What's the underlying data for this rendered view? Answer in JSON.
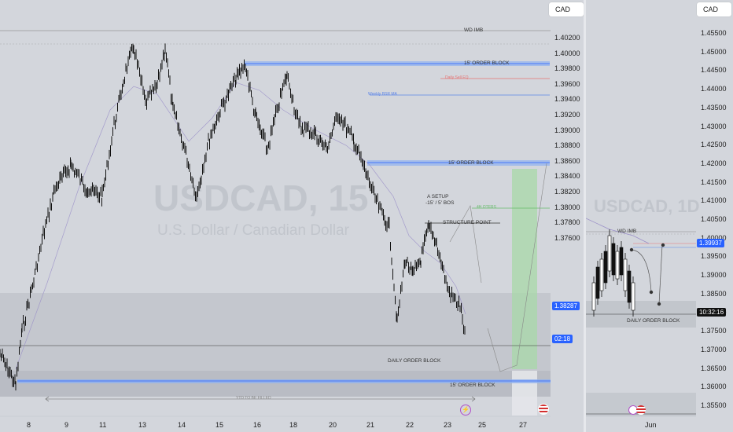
{
  "symbol": {
    "ticker": "USDCAD, 15",
    "ticker_right": "USDCAD, 1D",
    "name": "U.S. Dollar / Canadian Dollar"
  },
  "currency": "CAD",
  "left_chart": {
    "y_ticks": [
      "1.40200",
      "1.40000",
      "1.39800",
      "1.39600",
      "1.39400",
      "1.39200",
      "1.39000",
      "1.38800",
      "1.38600",
      "1.38400",
      "1.38200",
      "1.38000",
      "1.37800",
      "1.37600"
    ],
    "x_ticks": [
      "8",
      "9",
      "11",
      "13",
      "14",
      "15",
      "16",
      "18",
      "20",
      "21",
      "22",
      "23",
      "25",
      "27"
    ],
    "price_tag": "1.38287",
    "countdown": "02:18",
    "annotations": {
      "wd_imb": "WD IMB",
      "order_block_top": "15' ORDER BLOCK",
      "order_block_mid": "15' ORDER BLOCK",
      "order_block_bottom": "15' ORDER BLOCK",
      "daily_order_block": "DAILY ORDER BLOCK",
      "structure_point": "STRUCTURE POINT",
      "setup_line1": "A SETUP",
      "setup_line2": "-15' / 5' BOS",
      "sell_label": "Daily Sell EQ",
      "weekly_label": "Weekly BSR MA",
      "target_label": "4H OTERS",
      "range_label": "YTD TO BE FILLED"
    }
  },
  "right_chart": {
    "y_ticks": [
      "1.45500",
      "1.45000",
      "1.44500",
      "1.44000",
      "1.43500",
      "1.43000",
      "1.42500",
      "1.42000",
      "1.41500",
      "1.41000",
      "1.40500",
      "1.40000",
      "1.39500",
      "1.39000",
      "1.38500",
      "1.38000",
      "1.37500",
      "1.37000",
      "1.36500",
      "1.36000",
      "1.35500"
    ],
    "x_ticks": [
      "Jun"
    ],
    "price_tag": "1.39937",
    "countdown": "10:32:16",
    "annotations": {
      "wd_imb": "WD IMB",
      "daily_order_block": "DAILY ORDER BLOCK"
    }
  },
  "colors": {
    "accent_blue": "#2962ff",
    "zone_gray": "#b8bbc2",
    "green_zone": "#a8d8a8",
    "red_line": "#e57373"
  }
}
